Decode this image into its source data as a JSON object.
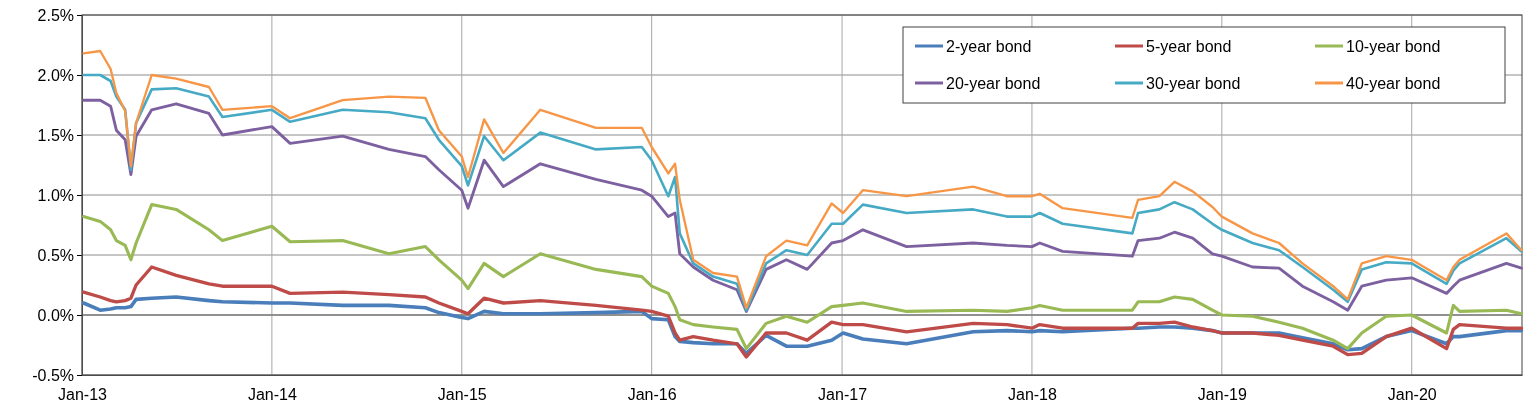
{
  "chart_data": {
    "type": "line",
    "x": [
      "2013-01-04",
      "2013-02-05",
      "2013-02-25",
      "2013-03-08",
      "2013-03-25",
      "2013-04-05",
      "2013-04-15",
      "2013-05-15",
      "2013-07-01",
      "2013-09-02",
      "2013-09-28",
      "2014-01-01",
      "2014-02-05",
      "2014-05-17",
      "2014-08-14",
      "2014-10-23",
      "2014-11-18",
      "2015-01-01",
      "2015-01-13",
      "2015-02-13",
      "2015-03-22",
      "2015-06-01",
      "2015-09-16",
      "2015-12-13",
      "2016-01-01",
      "2016-02-02",
      "2016-02-15",
      "2016-02-24",
      "2016-03-21",
      "2016-04-28",
      "2016-06-13",
      "2016-07-01",
      "2016-08-08",
      "2016-09-16",
      "2016-10-26",
      "2016-12-12",
      "2017-01-03",
      "2017-02-10",
      "2017-05-05",
      "2017-09-10",
      "2017-11-14",
      "2018-01-01",
      "2018-01-16",
      "2018-03-01",
      "2018-07-13",
      "2018-07-24",
      "2018-09-03",
      "2018-10-02",
      "2018-11-06",
      "2018-12-14",
      "2019-01-01",
      "2019-03-01",
      "2019-04-21",
      "2019-06-05",
      "2019-08-03",
      "2019-08-31",
      "2019-09-27",
      "2019-11-13",
      "2020-01-01",
      "2020-03-08",
      "2020-03-21",
      "2020-04-02",
      "2020-07-01",
      "2020-07-30"
    ],
    "series": [
      {
        "name": "2-year bond",
        "color": "#4a7ebb",
        "values": [
          0.1,
          0.04,
          0.05,
          0.06,
          0.06,
          0.07,
          0.13,
          0.14,
          0.15,
          0.12,
          0.11,
          0.1,
          0.1,
          0.08,
          0.08,
          0.06,
          0.02,
          -0.02,
          -0.03,
          0.03,
          0.01,
          0.01,
          0.02,
          0.03,
          -0.03,
          -0.04,
          -0.18,
          -0.22,
          -0.23,
          -0.24,
          -0.24,
          -0.32,
          -0.17,
          -0.26,
          -0.26,
          -0.21,
          -0.15,
          -0.2,
          -0.24,
          -0.14,
          -0.13,
          -0.14,
          -0.13,
          -0.14,
          -0.11,
          -0.11,
          -0.1,
          -0.1,
          -0.11,
          -0.13,
          -0.15,
          -0.15,
          -0.15,
          -0.19,
          -0.24,
          -0.29,
          -0.28,
          -0.18,
          -0.13,
          -0.24,
          -0.18,
          -0.18,
          -0.13,
          -0.13
        ]
      },
      {
        "name": "5-year bond",
        "color": "#be4b48",
        "values": [
          0.19,
          0.15,
          0.12,
          0.11,
          0.12,
          0.14,
          0.25,
          0.4,
          0.33,
          0.26,
          0.24,
          0.24,
          0.18,
          0.19,
          0.17,
          0.15,
          0.1,
          0.03,
          0.01,
          0.14,
          0.1,
          0.12,
          0.08,
          0.04,
          0.03,
          -0.01,
          -0.15,
          -0.21,
          -0.18,
          -0.21,
          -0.24,
          -0.35,
          -0.15,
          -0.15,
          -0.21,
          -0.06,
          -0.08,
          -0.08,
          -0.14,
          -0.07,
          -0.08,
          -0.11,
          -0.08,
          -0.11,
          -0.11,
          -0.07,
          -0.07,
          -0.06,
          -0.1,
          -0.13,
          -0.15,
          -0.15,
          -0.17,
          -0.21,
          -0.26,
          -0.33,
          -0.32,
          -0.18,
          -0.11,
          -0.28,
          -0.12,
          -0.08,
          -0.11,
          -0.11
        ]
      },
      {
        "name": "10-year bond",
        "color": "#98b954",
        "values": [
          0.82,
          0.78,
          0.71,
          0.62,
          0.58,
          0.46,
          0.6,
          0.92,
          0.88,
          0.71,
          0.62,
          0.74,
          0.61,
          0.62,
          0.51,
          0.57,
          0.46,
          0.29,
          0.22,
          0.43,
          0.32,
          0.51,
          0.38,
          0.32,
          0.24,
          0.18,
          0.07,
          -0.04,
          -0.08,
          -0.1,
          -0.12,
          -0.28,
          -0.07,
          -0.01,
          -0.06,
          0.07,
          0.08,
          0.1,
          0.03,
          0.04,
          0.03,
          0.06,
          0.08,
          0.04,
          0.04,
          0.11,
          0.11,
          0.15,
          0.13,
          0.04,
          0,
          -0.01,
          -0.06,
          -0.11,
          -0.21,
          -0.28,
          -0.15,
          -0.01,
          0,
          -0.15,
          0.08,
          0.03,
          0.04,
          0.01
        ]
      },
      {
        "name": "20-year bond",
        "color": "#7d60a0",
        "values": [
          1.79,
          1.79,
          1.74,
          1.54,
          1.46,
          1.17,
          1.49,
          1.71,
          1.76,
          1.68,
          1.5,
          1.57,
          1.43,
          1.49,
          1.38,
          1.32,
          1.21,
          1.04,
          0.89,
          1.29,
          1.07,
          1.26,
          1.13,
          1.04,
          0.99,
          0.82,
          0.85,
          0.51,
          0.4,
          0.29,
          0.21,
          0.03,
          0.38,
          0.46,
          0.38,
          0.6,
          0.62,
          0.71,
          0.57,
          0.6,
          0.58,
          0.57,
          0.6,
          0.53,
          0.49,
          0.62,
          0.64,
          0.69,
          0.64,
          0.51,
          0.49,
          0.4,
          0.39,
          0.24,
          0.11,
          0.04,
          0.24,
          0.29,
          0.31,
          0.18,
          0.24,
          0.29,
          0.43,
          0.39
        ]
      },
      {
        "name": "30-year bond",
        "color": "#46aac5",
        "values": [
          2.0,
          2.0,
          1.95,
          1.82,
          1.71,
          1.21,
          1.6,
          1.88,
          1.89,
          1.82,
          1.65,
          1.71,
          1.61,
          1.71,
          1.69,
          1.64,
          1.46,
          1.24,
          1.08,
          1.49,
          1.29,
          1.52,
          1.38,
          1.4,
          1.29,
          0.99,
          1.15,
          0.68,
          0.43,
          0.32,
          0.26,
          0.04,
          0.43,
          0.54,
          0.5,
          0.76,
          0.76,
          0.92,
          0.85,
          0.88,
          0.82,
          0.82,
          0.85,
          0.76,
          0.68,
          0.85,
          0.88,
          0.94,
          0.88,
          0.76,
          0.71,
          0.6,
          0.54,
          0.4,
          0.21,
          0.11,
          0.38,
          0.44,
          0.43,
          0.26,
          0.37,
          0.43,
          0.64,
          0.53
        ]
      },
      {
        "name": "40-year bond",
        "color": "#f79646",
        "values": [
          2.18,
          2.2,
          2.05,
          1.85,
          1.7,
          1.24,
          1.6,
          2.0,
          1.97,
          1.9,
          1.71,
          1.74,
          1.64,
          1.79,
          1.82,
          1.81,
          1.54,
          1.32,
          1.15,
          1.63,
          1.35,
          1.71,
          1.56,
          1.56,
          1.4,
          1.18,
          1.26,
          0.96,
          0.46,
          0.35,
          0.32,
          0.06,
          0.49,
          0.62,
          0.58,
          0.93,
          0.85,
          1.04,
          0.99,
          1.07,
          0.99,
          0.99,
          1.01,
          0.89,
          0.81,
          0.96,
          0.99,
          1.11,
          1.03,
          0.9,
          0.82,
          0.68,
          0.6,
          0.43,
          0.24,
          0.13,
          0.43,
          0.49,
          0.46,
          0.29,
          0.4,
          0.46,
          0.68,
          0.54
        ]
      }
    ],
    "xlim": [
      "2013-01-01",
      "2020-07-31"
    ],
    "xticks": [
      {
        "value": "2013-01-01",
        "label": "Jan-13"
      },
      {
        "value": "2014-01-01",
        "label": "Jan-14"
      },
      {
        "value": "2015-01-01",
        "label": "Jan-15"
      },
      {
        "value": "2016-01-01",
        "label": "Jan-16"
      },
      {
        "value": "2017-01-01",
        "label": "Jan-17"
      },
      {
        "value": "2018-01-01",
        "label": "Jan-18"
      },
      {
        "value": "2019-01-01",
        "label": "Jan-19"
      },
      {
        "value": "2020-01-01",
        "label": "Jan-20"
      }
    ],
    "ylim": [
      -0.5,
      2.5
    ],
    "yticks": [
      {
        "value": -0.5,
        "label": "-0.5%"
      },
      {
        "value": 0,
        "label": "0.0%"
      },
      {
        "value": 0.5,
        "label": "0.5%"
      },
      {
        "value": 1,
        "label": "1.0%"
      },
      {
        "value": 1.5,
        "label": "1.5%"
      },
      {
        "value": 2,
        "label": "2.0%"
      },
      {
        "value": 2.5,
        "label": "2.5%"
      }
    ],
    "grid": true,
    "legend": "top right",
    "marker": "none",
    "line_style": "solid"
  }
}
